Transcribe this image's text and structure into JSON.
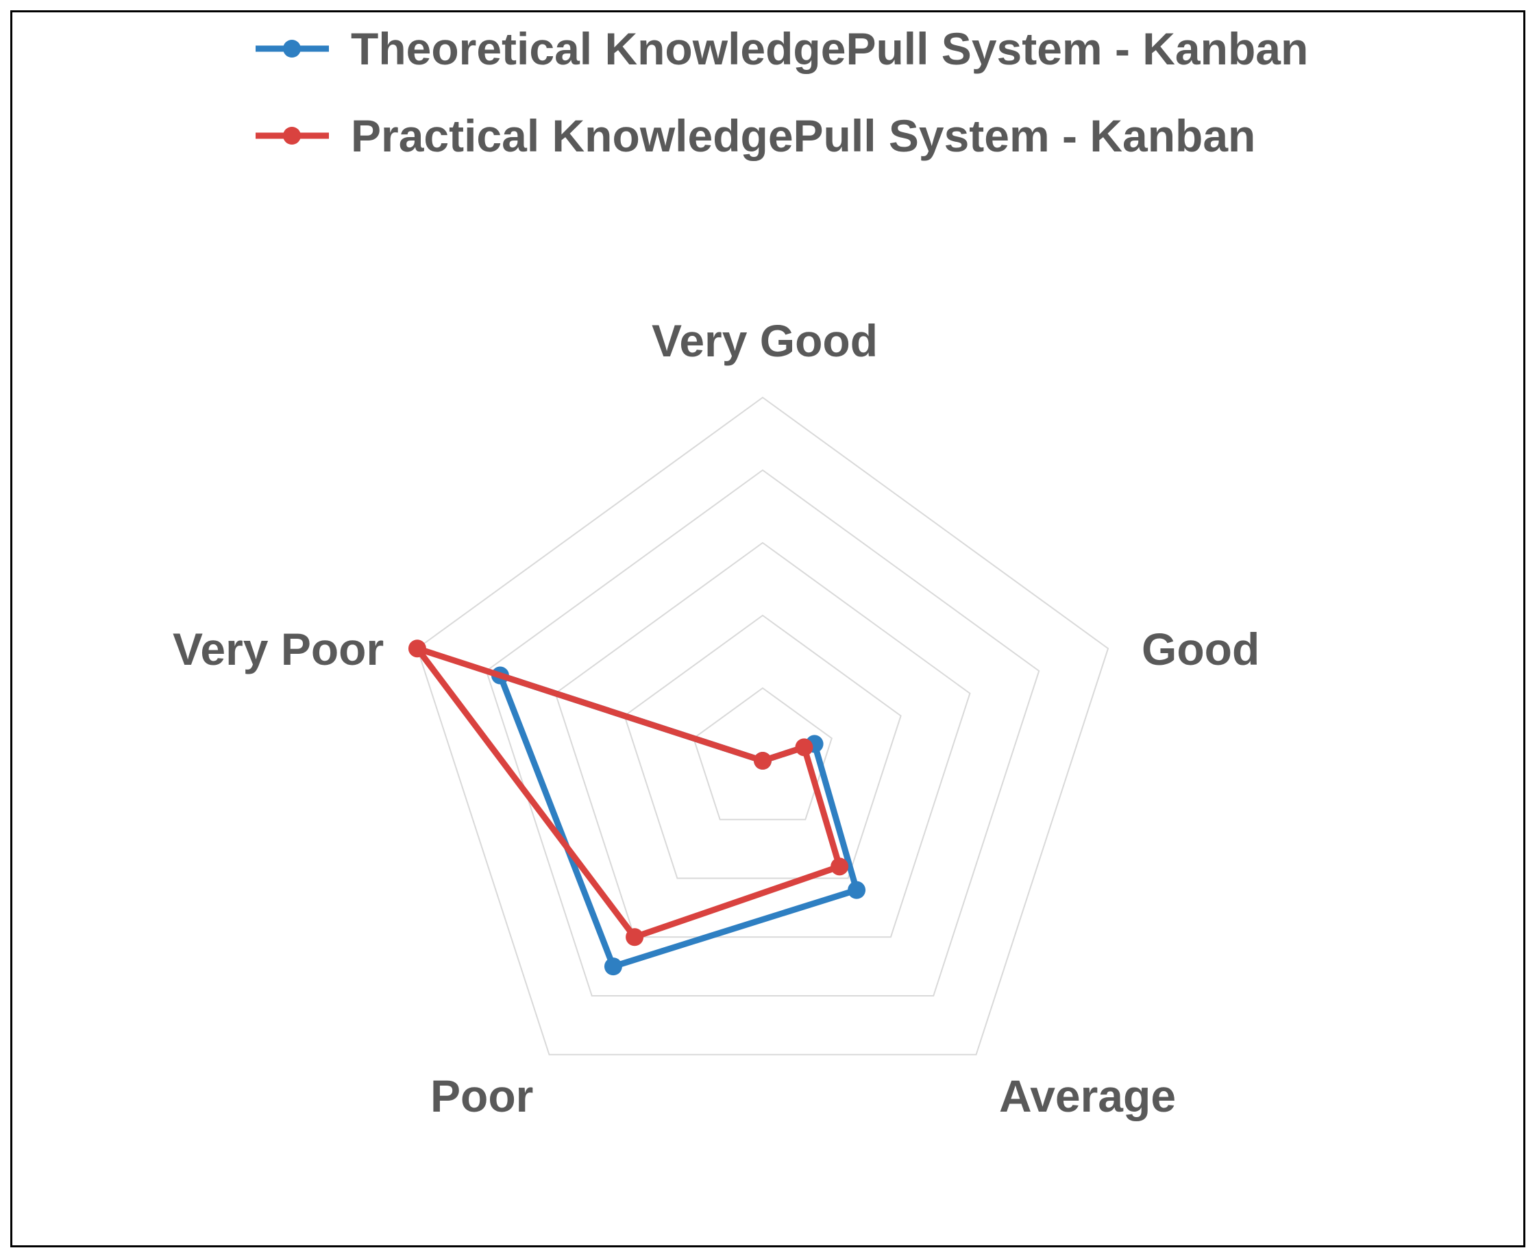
{
  "chart_data": {
    "type": "radar",
    "categories": [
      "Very Good",
      "Good",
      "Average",
      "Poor",
      "Very Poor"
    ],
    "rmax": 5,
    "rings": 5,
    "grid": true,
    "legend_position": "top",
    "series": [
      {
        "name": "Theoretical KnowledgePull System - Kanban",
        "color": "#2e7fc2",
        "values": [
          0,
          0.75,
          2.2,
          3.5,
          3.8
        ]
      },
      {
        "name": "Practical KnowledgePull System - Kanban",
        "color": "#d9423f",
        "values": [
          0,
          0.6,
          1.8,
          3.0,
          5.0
        ]
      }
    ]
  }
}
